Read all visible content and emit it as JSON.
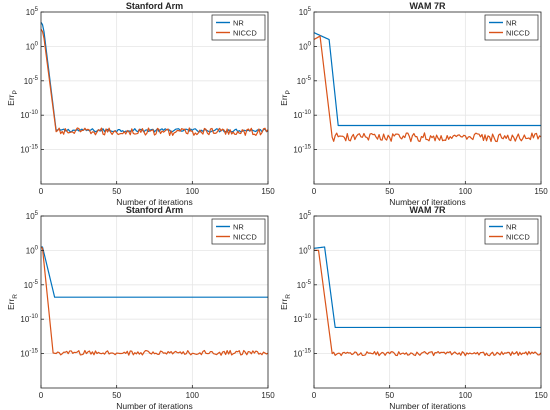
{
  "figure": {
    "colors": {
      "NR": "#0072BD",
      "NICCD": "#D95319",
      "axis": "#262626",
      "grid": "#e6e6e6"
    }
  },
  "chart_data": [
    {
      "type": "line",
      "title": "Stanford Arm",
      "xlabel": "Number of iterations",
      "ylabel_main": "Err",
      "ylabel_sub": "P",
      "y_scale": "log",
      "xlim": [
        0,
        150
      ],
      "ylim_exp": [
        -20,
        5
      ],
      "x_ticks": [
        0,
        50,
        100,
        150
      ],
      "y_tick_exps": [
        5,
        0,
        -5,
        -10,
        -15
      ],
      "legend": [
        "NR",
        "NICCD"
      ],
      "legend_position": "top-right",
      "grid": true,
      "series": [
        {
          "name": "NR",
          "shape": "converge",
          "start_exp": 3.5,
          "knee_x": 1.5,
          "knee_exp": 3.0,
          "drop_end_x": 10,
          "final_exp": -12.2,
          "noise": 0.25
        },
        {
          "name": "NICCD",
          "shape": "converge",
          "start_exp": 2.5,
          "knee_x": 1.5,
          "knee_exp": 2.0,
          "drop_end_x": 10,
          "final_exp": -12.4,
          "noise": 0.55
        }
      ]
    },
    {
      "type": "line",
      "title": "WAM 7R",
      "xlabel": "Number of iterations",
      "ylabel_main": "Err",
      "ylabel_sub": "P",
      "y_scale": "log",
      "xlim": [
        0,
        150
      ],
      "ylim_exp": [
        -20,
        5
      ],
      "x_ticks": [
        0,
        50,
        100,
        150
      ],
      "y_tick_exps": [
        5,
        0,
        -5,
        -10,
        -15
      ],
      "legend": [
        "NR",
        "NICCD"
      ],
      "legend_position": "top-right",
      "grid": true,
      "series": [
        {
          "name": "NR",
          "shape": "converge",
          "start_exp": 2.0,
          "knee_x": 10,
          "knee_exp": 1.0,
          "drop_end_x": 16,
          "final_exp": -11.5,
          "noise": 0.0
        },
        {
          "name": "NICCD",
          "shape": "converge",
          "start_exp": 1.0,
          "knee_x": 4,
          "knee_exp": 1.5,
          "drop_end_x": 12,
          "final_exp": -13.2,
          "noise": 0.65
        }
      ]
    },
    {
      "type": "line",
      "title": "Stanford Arm",
      "xlabel": "Number of iterations",
      "ylabel_main": "Err",
      "ylabel_sub": "R",
      "y_scale": "log",
      "xlim": [
        0,
        150
      ],
      "ylim_exp": [
        -20,
        5
      ],
      "x_ticks": [
        0,
        50,
        100,
        150
      ],
      "y_tick_exps": [
        5,
        0,
        -5,
        -10,
        -15
      ],
      "legend": [
        "NR",
        "NICCD"
      ],
      "legend_position": "top-right",
      "grid": true,
      "series": [
        {
          "name": "NR",
          "shape": "converge",
          "start_exp": 0.5,
          "knee_x": 1,
          "knee_exp": 0.5,
          "drop_end_x": 9,
          "final_exp": -6.8,
          "noise": 0.0
        },
        {
          "name": "NICCD",
          "shape": "converge",
          "start_exp": 0.5,
          "knee_x": 1,
          "knee_exp": 0.3,
          "drop_end_x": 8,
          "final_exp": -14.9,
          "noise": 0.35
        }
      ]
    },
    {
      "type": "line",
      "title": "WAM 7R",
      "xlabel": "Number of iterations",
      "ylabel_main": "Err",
      "ylabel_sub": "R",
      "y_scale": "log",
      "xlim": [
        0,
        150
      ],
      "ylim_exp": [
        -20,
        5
      ],
      "x_ticks": [
        0,
        50,
        100,
        150
      ],
      "y_tick_exps": [
        5,
        0,
        -5,
        -10,
        -15
      ],
      "legend": [
        "NR",
        "NICCD"
      ],
      "legend_position": "top-right",
      "grid": true,
      "series": [
        {
          "name": "NR",
          "shape": "converge",
          "start_exp": 0.3,
          "knee_x": 7,
          "knee_exp": 0.5,
          "drop_end_x": 14,
          "final_exp": -11.2,
          "noise": 0.0
        },
        {
          "name": "NICCD",
          "shape": "converge",
          "start_exp": 0.0,
          "knee_x": 3,
          "knee_exp": 0.0,
          "drop_end_x": 12,
          "final_exp": -15.0,
          "noise": 0.3
        }
      ]
    }
  ]
}
